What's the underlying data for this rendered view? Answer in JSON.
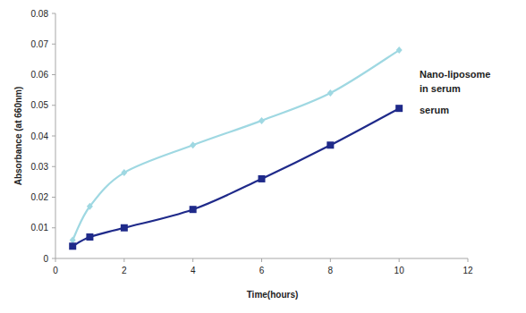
{
  "chart_data": {
    "type": "line",
    "x_label": "Time(hours)",
    "y_label": "Absorbance (at 660nm)",
    "x": [
      0.5,
      1,
      2,
      4,
      6,
      8,
      10
    ],
    "series": [
      {
        "name": "Nano-liposome in serum",
        "color": "#9fd8e2",
        "marker": "diamond",
        "line_style": "smooth",
        "values": [
          0.006,
          0.017,
          0.028,
          0.037,
          0.045,
          0.054,
          0.068
        ]
      },
      {
        "name": "serum",
        "color": "#1f2a8a",
        "marker": "square",
        "line_style": "smooth",
        "values": [
          0.004,
          0.007,
          0.01,
          0.016,
          0.026,
          0.037,
          0.049
        ]
      }
    ],
    "xlim": [
      0,
      12
    ],
    "ylim": [
      0,
      0.08
    ],
    "xticks": [
      0,
      2,
      4,
      6,
      8,
      10,
      12
    ],
    "yticks": [
      0,
      0.01,
      0.02,
      0.03,
      0.04,
      0.05,
      0.06,
      0.07,
      0.08
    ],
    "grid": false,
    "legend": "right"
  }
}
